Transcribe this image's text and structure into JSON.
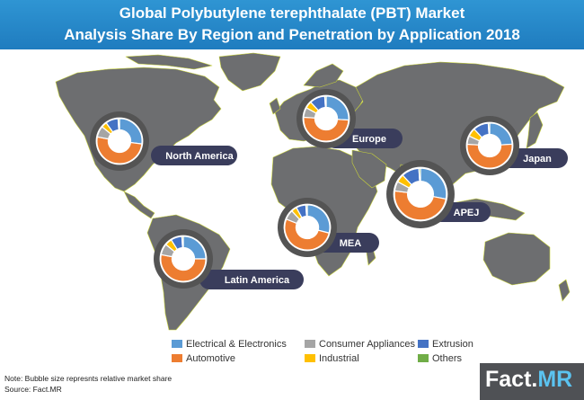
{
  "title": {
    "line1": "Global Polybutylene terephthalate (PBT) Market",
    "line2": "Analysis Share By Region and Penetration by Application 2018"
  },
  "colors": {
    "title_bg": "#1f7cbf",
    "map_land": "#6d6e70",
    "map_border": "#c9d43a",
    "label_bg": "#3a3d5c",
    "bubble_ring": "#545454"
  },
  "chart_data": {
    "type": "pie",
    "subtype": "donut-bubble-map",
    "title": "Global Polybutylene terephthalate (PBT) Market Analysis Share By Region and Penetration by Application 2018",
    "categories": [
      "Electrical & Electronics",
      "Automotive",
      "Consumer Appliances",
      "Industrial",
      "Extrusion",
      "Others"
    ],
    "category_colors": [
      "#5b9bd5",
      "#ed7d31",
      "#a5a5a5",
      "#ffc000",
      "#4472c4",
      "#70ad47"
    ],
    "regions": [
      {
        "name": "North America",
        "relative_size": 1.0,
        "values": [
          27,
          51,
          8,
          4,
          9,
          1
        ]
      },
      {
        "name": "Europe",
        "relative_size": 1.0,
        "values": [
          26,
          50,
          7,
          5,
          11,
          1
        ]
      },
      {
        "name": "Japan",
        "relative_size": 1.0,
        "values": [
          24,
          52,
          6,
          6,
          11,
          1
        ]
      },
      {
        "name": "APEJ",
        "relative_size": 1.15,
        "values": [
          28,
          49,
          6,
          5,
          11,
          1
        ]
      },
      {
        "name": "MEA",
        "relative_size": 1.0,
        "values": [
          29,
          52,
          7,
          4,
          7,
          1
        ]
      },
      {
        "name": "Latin America",
        "relative_size": 1.0,
        "values": [
          25,
          53,
          8,
          5,
          8,
          1
        ]
      }
    ],
    "legend_position": "bottom-center"
  },
  "legend": [
    {
      "label": "Electrical & Electronics",
      "color": "#5b9bd5"
    },
    {
      "label": "Automotive",
      "color": "#ed7d31"
    },
    {
      "label": "Consumer Appliances",
      "color": "#a5a5a5"
    },
    {
      "label": "Industrial",
      "color": "#ffc000"
    },
    {
      "label": "Extrusion",
      "color": "#4472c4"
    },
    {
      "label": "Others",
      "color": "#70ad47"
    }
  ],
  "notes": {
    "note": "Note: Bubble size represnts relative market share",
    "source": "Source: Fact.MR"
  },
  "logo": {
    "part1": "Fact.",
    "part2": "MR"
  }
}
